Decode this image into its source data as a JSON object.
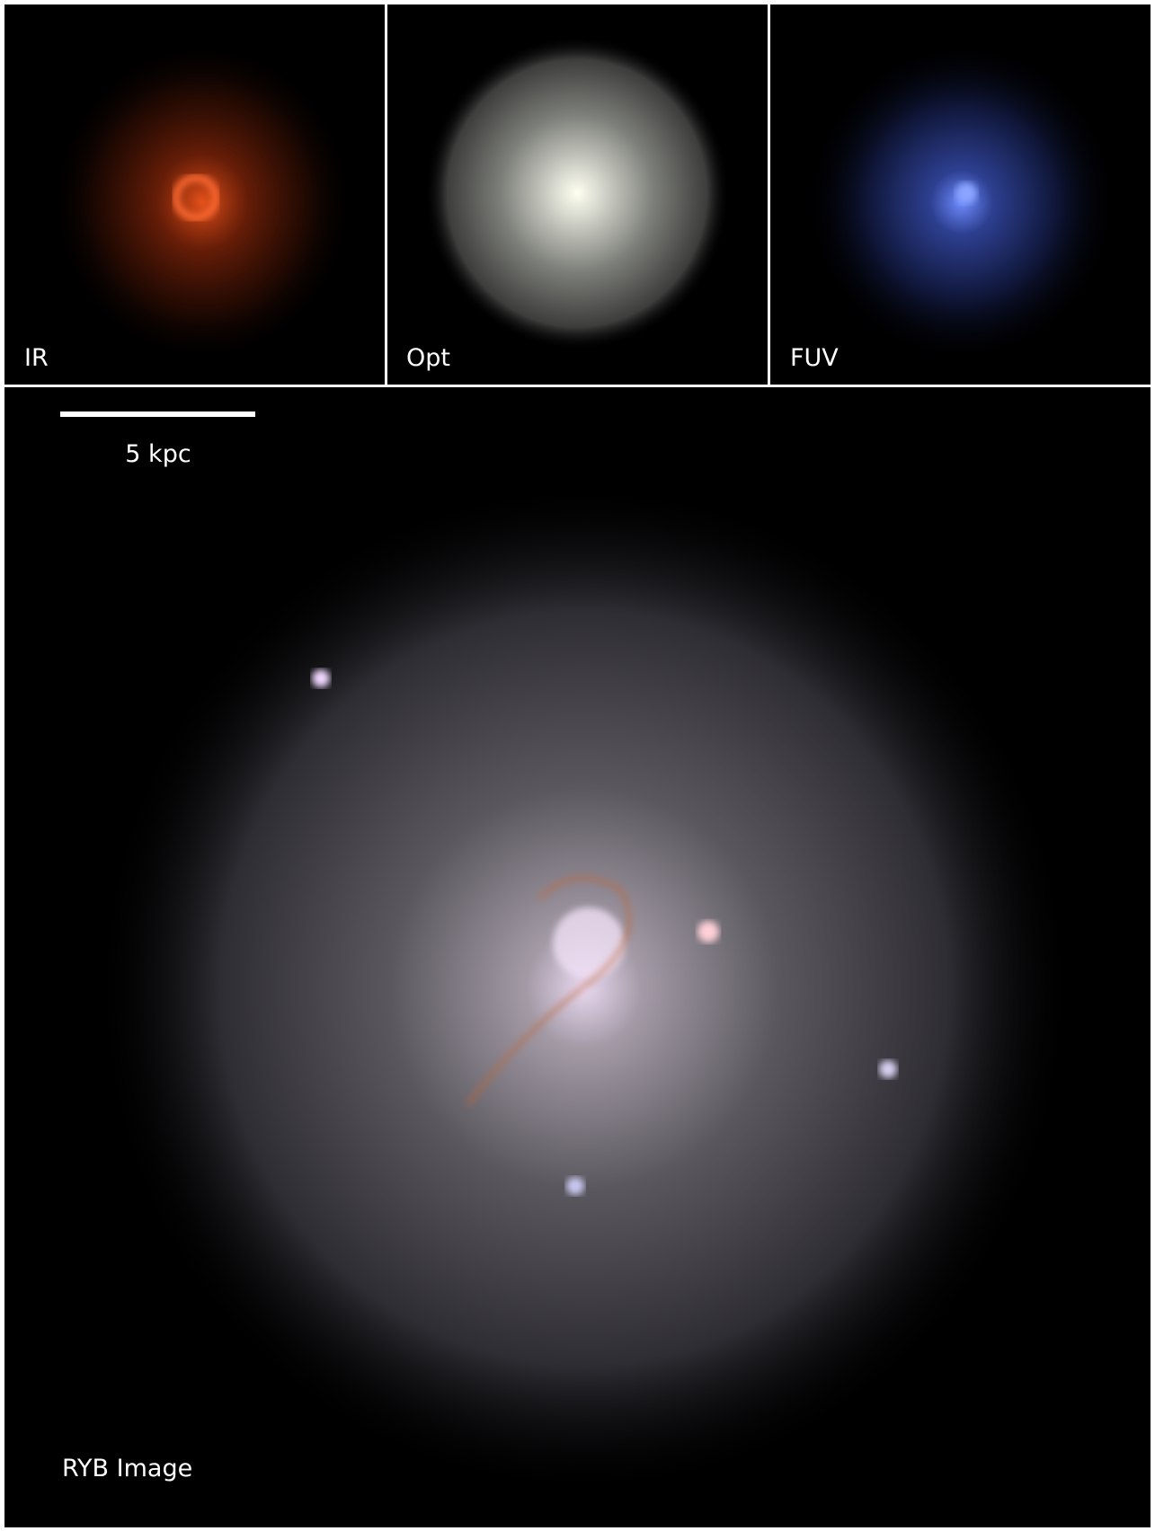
{
  "panels": [
    {
      "label": "IR"
    },
    {
      "label": "Opt"
    },
    {
      "label": "FUV"
    }
  ],
  "main_panel": {
    "label": "RYB Image",
    "scale_bar": {
      "label": "5 kpc"
    }
  }
}
